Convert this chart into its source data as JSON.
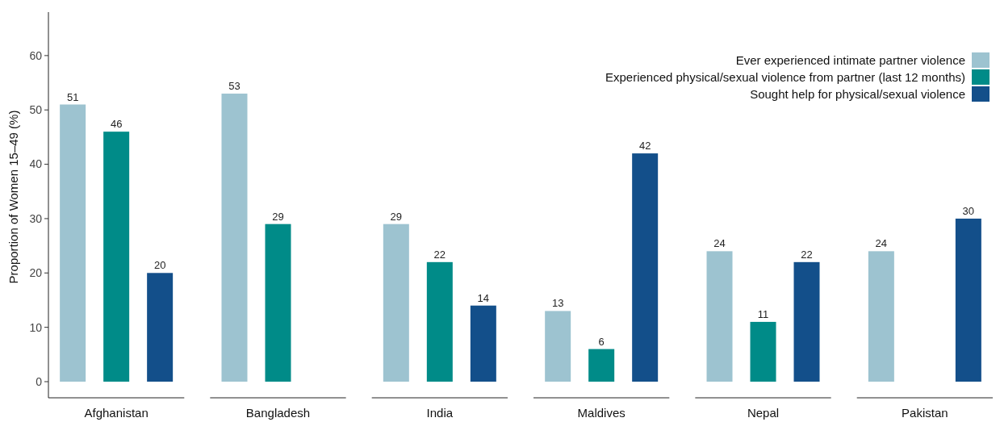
{
  "chart_data": {
    "type": "bar",
    "ylabel": "Proportion of Women 15–49 (%)",
    "categories": [
      "Afghanistan",
      "Bangladesh",
      "India",
      "Maldives",
      "Nepal",
      "Pakistan"
    ],
    "series": [
      {
        "name": "Ever experienced intimate partner violence",
        "color": "#9dc3d0",
        "values": [
          51,
          53,
          29,
          13,
          24,
          24
        ]
      },
      {
        "name": "Experienced physical/sexual violence from partner (last 12 months)",
        "color": "#008b88",
        "values": [
          46,
          29,
          22,
          6,
          11,
          null
        ]
      },
      {
        "name": "Sought help for physical/sexual violence",
        "color": "#134f8a",
        "values": [
          20,
          null,
          14,
          42,
          22,
          30
        ]
      }
    ],
    "ylim": [
      0,
      68
    ],
    "yticks": [
      0,
      10,
      20,
      30,
      40,
      50,
      60
    ],
    "data_labels": true,
    "legend": "top right",
    "grid": false
  }
}
